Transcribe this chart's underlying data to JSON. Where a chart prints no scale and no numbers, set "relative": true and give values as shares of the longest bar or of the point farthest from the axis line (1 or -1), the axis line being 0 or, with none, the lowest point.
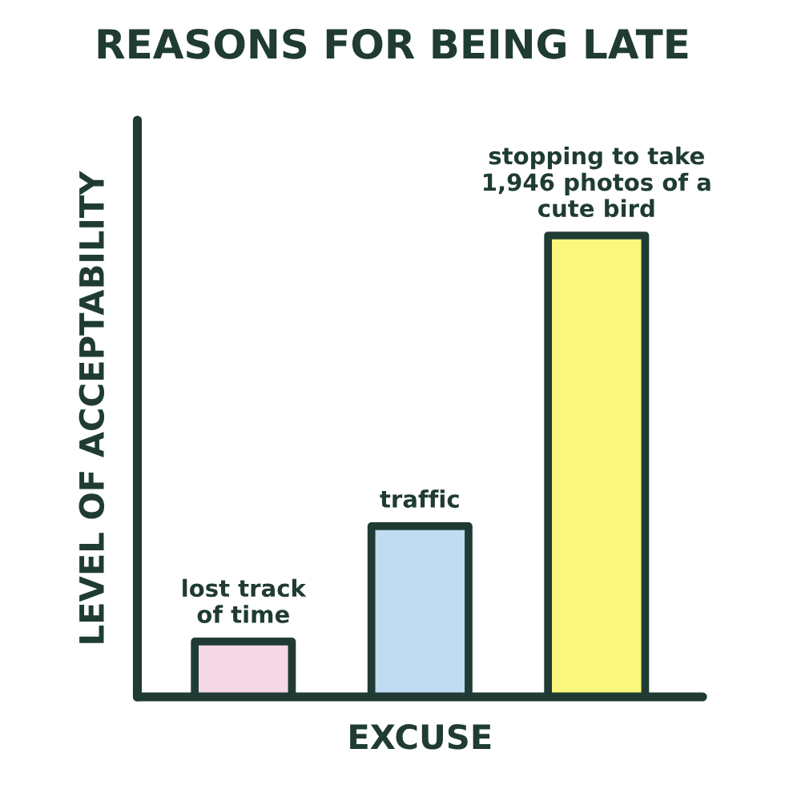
{
  "chart_data": {
    "type": "bar",
    "title": "REASONS FOR BEING LATE",
    "xlabel": "EXCUSE",
    "ylabel": "LEVEL OF ACCEPTABILITY",
    "categories": [
      "lost track\nof time",
      "traffic",
      "stopping to take\n1,946 photos of a\ncute bird"
    ],
    "values": [
      0.12,
      0.37,
      1
    ],
    "colors": [
      "#f4d8e6",
      "#bfdcf2",
      "#fbf77c"
    ],
    "relative": true
  }
}
